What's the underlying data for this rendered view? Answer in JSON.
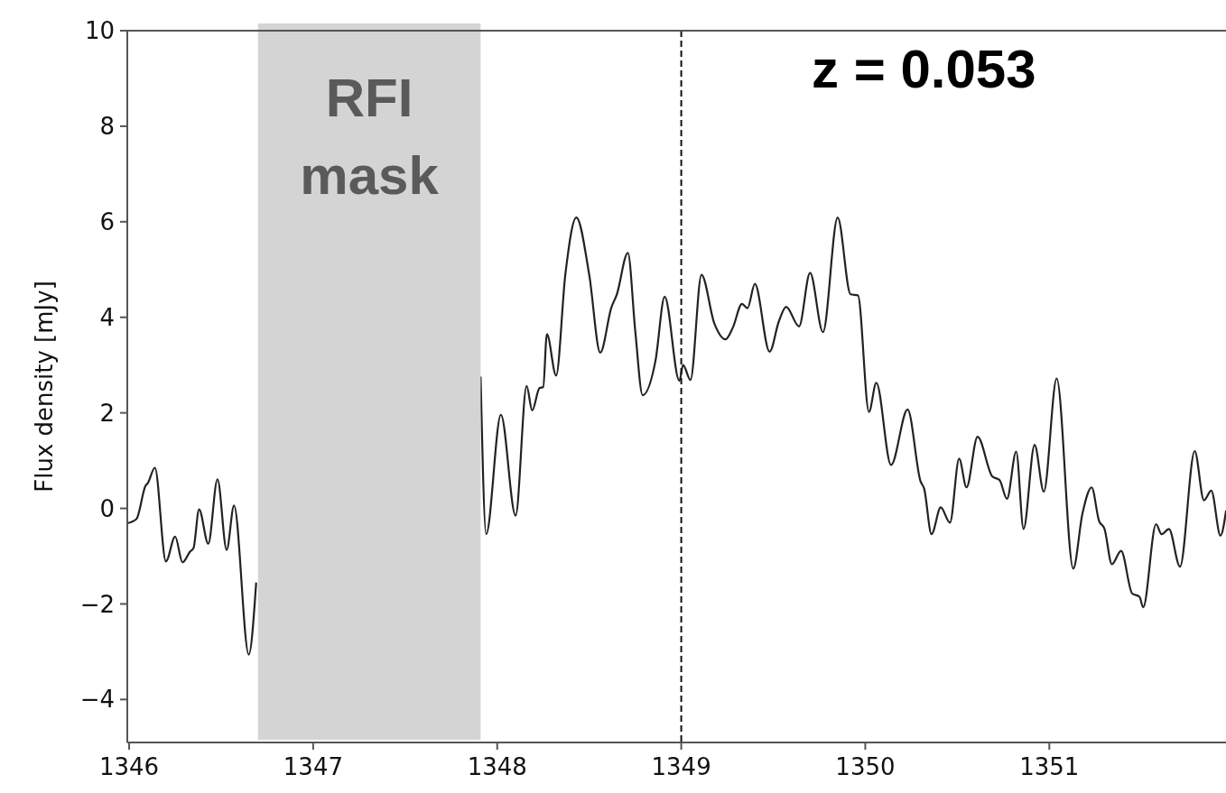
{
  "chart_data": {
    "type": "line",
    "ylabel": "Flux density [mJy]",
    "xlim": [
      1345.99,
      1351.96
    ],
    "ylim": [
      -4.9,
      10
    ],
    "xticks": [
      1346,
      1347,
      1348,
      1349,
      1350,
      1351
    ],
    "yticks": [
      {
        "value": -4,
        "label": "−4"
      },
      {
        "value": -2,
        "label": "−2"
      },
      0,
      2,
      4,
      6,
      8,
      10
    ],
    "grid": false,
    "marker": "none",
    "annotations": [
      "z = 0.053"
    ],
    "line_style": "solid",
    "bands": [
      {
        "axis": "x",
        "from": 1346.7,
        "to": 1347.91,
        "label": "RFI mask",
        "color": "#d4d4d4"
      }
    ],
    "ref_lines": [
      {
        "axis": "x",
        "value": 1349,
        "line_style": "dashed",
        "color": "#111111"
      }
    ],
    "series": [
      {
        "color": "#222222",
        "x": [
          1345.99,
          1346.04,
          1346.09,
          1346.1,
          1346.14,
          1346.2,
          1346.25,
          1346.29,
          1346.33,
          1346.35,
          1346.38,
          1346.43,
          1346.48,
          1346.53,
          1346.57,
          1346.65,
          1346.69,
          1347.3,
          1347.91,
          1347.94,
          1348.02,
          1348.1,
          1348.16,
          1348.19,
          1348.23,
          1348.25,
          1348.27,
          1348.32,
          1348.37,
          1348.43,
          1348.5,
          1348.56,
          1348.62,
          1348.65,
          1348.71,
          1348.75,
          1348.79,
          1348.86,
          1348.91,
          1348.99,
          1349.01,
          1349.05,
          1349.11,
          1349.18,
          1349.24,
          1349.28,
          1349.33,
          1349.36,
          1349.4,
          1349.48,
          1349.53,
          1349.57,
          1349.64,
          1349.7,
          1349.77,
          1349.85,
          1349.92,
          1349.96,
          1350.02,
          1350.06,
          1350.14,
          1350.23,
          1350.3,
          1350.32,
          1350.36,
          1350.41,
          1350.46,
          1350.51,
          1350.55,
          1350.61,
          1350.69,
          1350.73,
          1350.77,
          1350.82,
          1350.86,
          1350.92,
          1350.97,
          1351.04,
          1351.13,
          1351.18,
          1351.23,
          1351.27,
          1351.3,
          1351.34,
          1351.39,
          1351.45,
          1351.49,
          1351.51,
          1351.58,
          1351.61,
          1351.65,
          1351.71,
          1351.79,
          1351.84,
          1351.88,
          1351.93,
          1351.96
        ],
        "values": [
          -0.31,
          -0.22,
          0.48,
          0.52,
          0.85,
          -1.11,
          -0.59,
          -1.13,
          -0.91,
          -0.83,
          -0.02,
          -0.74,
          0.61,
          -0.87,
          0.06,
          -3.06,
          -1.57,
          null,
          2.74,
          -0.54,
          1.96,
          -0.15,
          2.56,
          2.05,
          2.52,
          2.54,
          3.65,
          2.78,
          4.89,
          6.09,
          4.89,
          3.26,
          4.2,
          4.48,
          5.35,
          3.72,
          2.37,
          3.09,
          4.43,
          2.67,
          3.0,
          2.69,
          4.89,
          3.87,
          3.54,
          3.78,
          4.28,
          4.19,
          4.7,
          3.28,
          3.91,
          4.22,
          3.81,
          4.93,
          3.69,
          6.09,
          4.48,
          4.46,
          2.02,
          2.63,
          0.91,
          2.07,
          0.57,
          0.41,
          -0.54,
          0.02,
          -0.3,
          1.04,
          0.44,
          1.5,
          0.67,
          0.59,
          0.2,
          1.19,
          -0.43,
          1.33,
          0.35,
          2.72,
          -1.26,
          -0.11,
          0.44,
          -0.26,
          -0.43,
          -1.17,
          -0.89,
          -1.78,
          -1.85,
          -2.07,
          -0.33,
          -0.54,
          -0.43,
          -1.22,
          1.2,
          0.17,
          0.37,
          -0.57,
          -0.06
        ]
      }
    ]
  }
}
